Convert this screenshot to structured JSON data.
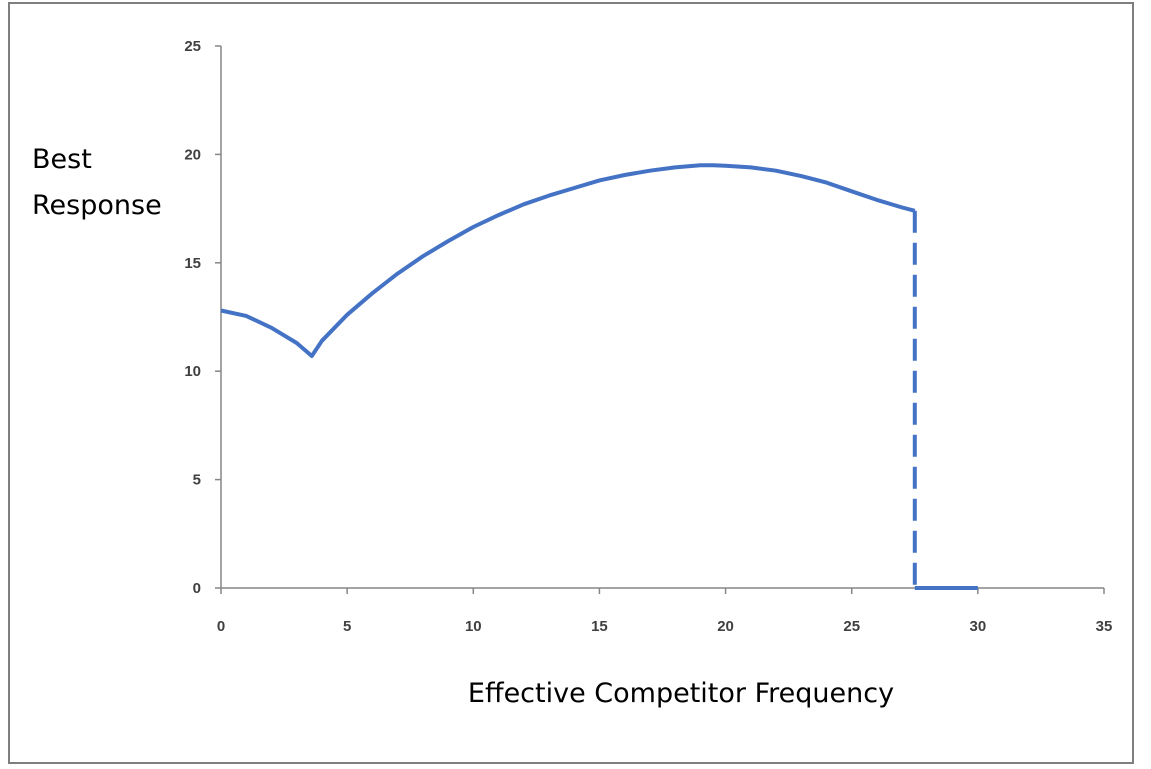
{
  "chart_data": {
    "type": "line",
    "title": "",
    "xlabel": "Effective Competitor Frequency",
    "ylabel_lines": [
      "Best",
      "Response"
    ],
    "xlim": [
      0,
      35
    ],
    "ylim": [
      0,
      25
    ],
    "x_ticks": [
      0,
      5,
      10,
      15,
      20,
      25,
      30,
      35
    ],
    "y_ticks": [
      0,
      5,
      10,
      15,
      20,
      25
    ],
    "grid": false,
    "legend": "none",
    "line_color": "#4472C4",
    "series": [
      {
        "style": "solid",
        "x": [
          0,
          1,
          2,
          3,
          3.6,
          4,
          5,
          6,
          7,
          8,
          9,
          10,
          11,
          12,
          13,
          14,
          15,
          16,
          17,
          18,
          19,
          19.5,
          20,
          21,
          22,
          23,
          24,
          25,
          26,
          27,
          27.5
        ],
        "y": [
          12.8,
          12.55,
          12.0,
          11.3,
          10.7,
          11.4,
          12.6,
          13.6,
          14.5,
          15.3,
          16.0,
          16.65,
          17.2,
          17.7,
          18.1,
          18.45,
          18.8,
          19.05,
          19.25,
          19.4,
          19.5,
          19.5,
          19.48,
          19.4,
          19.25,
          19.0,
          18.7,
          18.3,
          17.9,
          17.55,
          17.4
        ]
      },
      {
        "style": "dashed",
        "x": [
          27.5,
          27.5
        ],
        "y": [
          17.4,
          0
        ]
      },
      {
        "style": "solid",
        "x": [
          27.5,
          30
        ],
        "y": [
          0,
          0
        ]
      }
    ]
  }
}
